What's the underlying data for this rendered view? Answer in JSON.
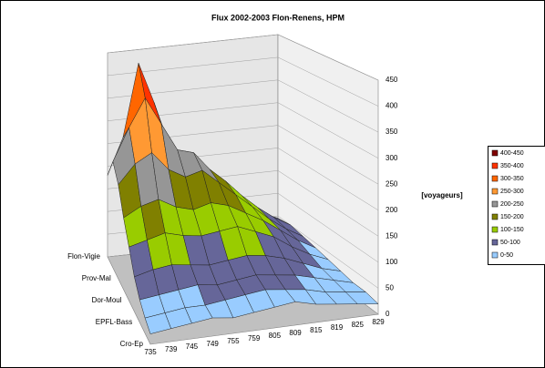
{
  "chart_data": {
    "type": "surface",
    "title": "Flux 2002-2003 Flon-Renens, HPM",
    "categories": [
      "735",
      "739",
      "745",
      "749",
      "755",
      "759",
      "805",
      "809",
      "815",
      "819",
      "825",
      "829"
    ],
    "series": [
      {
        "name": "Cro-Ep",
        "values": [
          20,
          25,
          30,
          35,
          30,
          35,
          40,
          45,
          35,
          30,
          25,
          20
        ]
      },
      {
        "name": null,
        "values": [
          30,
          35,
          40,
          40,
          45,
          50,
          55,
          50,
          45,
          35,
          30,
          25
        ]
      },
      {
        "name": "EPFL-Bass",
        "values": [
          45,
          50,
          55,
          60,
          55,
          60,
          65,
          60,
          55,
          45,
          35,
          25
        ]
      },
      {
        "name": null,
        "values": [
          70,
          80,
          85,
          80,
          75,
          80,
          85,
          80,
          70,
          55,
          40,
          30
        ]
      },
      {
        "name": "Dor-Moul",
        "values": [
          110,
          120,
          130,
          120,
          115,
          120,
          125,
          110,
          95,
          70,
          50,
          35
        ]
      },
      {
        "name": null,
        "values": [
          150,
          170,
          180,
          160,
          150,
          160,
          150,
          130,
          110,
          85,
          60,
          40
        ]
      },
      {
        "name": "Prov-Mal",
        "values": [
          200,
          240,
          260,
          220,
          200,
          210,
          180,
          150,
          120,
          90,
          65,
          45
        ]
      },
      {
        "name": null,
        "values": [
          230,
          300,
          360,
          300,
          240,
          230,
          190,
          160,
          125,
          95,
          70,
          50
        ]
      },
      {
        "name": "Flon-Vigie",
        "values": [
          180,
          260,
          420,
          330,
          230,
          200,
          170,
          140,
          110,
          85,
          60,
          45
        ]
      }
    ],
    "zlim": [
      0,
      450
    ],
    "zticks": [
      0,
      50,
      100,
      150,
      200,
      250,
      300,
      350,
      400,
      450
    ],
    "zlabel": "[voyageurs]",
    "legend": [
      {
        "name": "0-50",
        "color": "#99ccff"
      },
      {
        "name": "50-100",
        "color": "#666699"
      },
      {
        "name": "100-150",
        "color": "#99cc00"
      },
      {
        "name": "150-200",
        "color": "#808000"
      },
      {
        "name": "200-250",
        "color": "#969696"
      },
      {
        "name": "250-300",
        "color": "#ff9933"
      },
      {
        "name": "300-350",
        "color": "#ff6600"
      },
      {
        "name": "350-400",
        "color": "#ff3300"
      },
      {
        "name": "400-450",
        "color": "#800000"
      }
    ]
  }
}
